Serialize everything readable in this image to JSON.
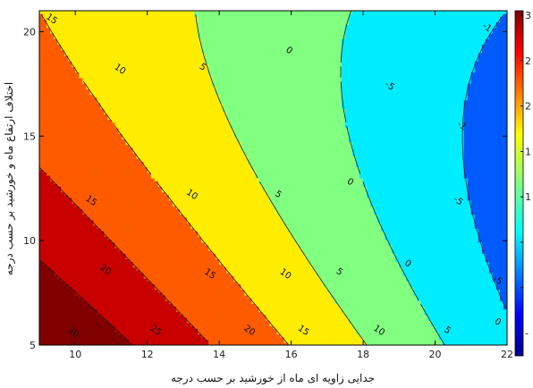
{
  "chart_data": {
    "type": "contour",
    "xlabel": "جدایی زاویه ای ماه از خورشید بر حسب درجه",
    "ylabel": "اختلاف ارتفاع ماه و خورشید بر حسب درجه",
    "xlim": [
      9,
      22
    ],
    "ylim": [
      5,
      21
    ],
    "xticks": [
      10,
      12,
      14,
      16,
      18,
      20,
      22
    ],
    "yticks": [
      5,
      10,
      15,
      20
    ],
    "colorbar": {
      "min": -5,
      "max": 30,
      "colormap": "jet",
      "visible_tick_labels": [
        "3",
        "2",
        "2",
        "1",
        "1",
        "",
        "",
        "-"
      ]
    },
    "contour_levels": [
      30,
      25,
      20,
      15,
      10,
      5,
      0,
      -5
    ],
    "contour_labels": [
      {
        "text": "15",
        "x": 9.3,
        "y": 20.5
      },
      {
        "text": "10",
        "x": 11.2,
        "y": 18.1
      },
      {
        "text": "5",
        "x": 13.5,
        "y": 18.2
      },
      {
        "text": "0",
        "x": 15.9,
        "y": 19.0
      },
      {
        "text": "-5",
        "x": 18.7,
        "y": 17.3
      },
      {
        "text": "-1",
        "x": 21.4,
        "y": 20.1
      },
      {
        "text": "-1",
        "x": 20.7,
        "y": 15.4
      },
      {
        "text": "15",
        "x": 10.4,
        "y": 11.8
      },
      {
        "text": "10",
        "x": 13.2,
        "y": 12.1
      },
      {
        "text": "5",
        "x": 15.6,
        "y": 12.1
      },
      {
        "text": "0",
        "x": 17.6,
        "y": 12.7
      },
      {
        "text": "-5",
        "x": 20.6,
        "y": 11.8
      },
      {
        "text": "20",
        "x": 10.8,
        "y": 8.5
      },
      {
        "text": "15",
        "x": 13.7,
        "y": 8.3
      },
      {
        "text": "10",
        "x": 15.8,
        "y": 8.3
      },
      {
        "text": "5",
        "x": 17.3,
        "y": 8.4
      },
      {
        "text": "0",
        "x": 19.2,
        "y": 8.8
      },
      {
        "text": "-5",
        "x": 21.7,
        "y": 8.0
      },
      {
        "text": "30",
        "x": 9.9,
        "y": 5.5
      },
      {
        "text": "25",
        "x": 12.2,
        "y": 5.6
      },
      {
        "text": "20",
        "x": 14.8,
        "y": 5.6
      },
      {
        "text": "15",
        "x": 16.3,
        "y": 5.6
      },
      {
        "text": "10",
        "x": 18.4,
        "y": 5.6
      },
      {
        "text": "5",
        "x": 20.3,
        "y": 5.6
      },
      {
        "text": "0",
        "x": 21.7,
        "y": 6.0
      }
    ]
  }
}
